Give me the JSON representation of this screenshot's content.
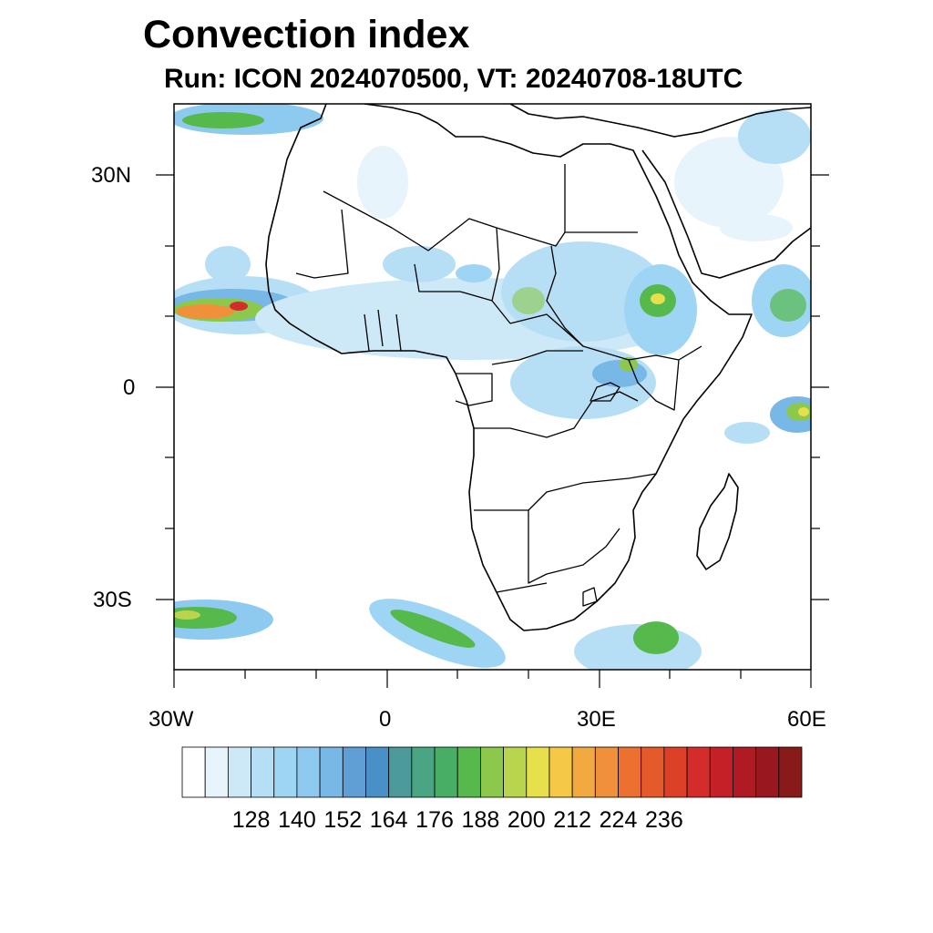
{
  "title": "Convection index",
  "subtitle": "Run: ICON 2024070500,  VT: 20240708-18UTC",
  "axes": {
    "x_ticks": [
      "30W",
      "0",
      "30E",
      "60E"
    ],
    "y_ticks": [
      "30N",
      "0",
      "30S"
    ],
    "x_range_deg": [
      -30,
      60
    ],
    "y_range_deg": [
      -40,
      40
    ]
  },
  "colorbar": {
    "labels": [
      "128",
      "140",
      "152",
      "164",
      "176",
      "188",
      "200",
      "212",
      "224",
      "236"
    ],
    "colors": [
      "#ffffff",
      "#e8f4fc",
      "#cde9f8",
      "#b6dff6",
      "#9fd5f4",
      "#8ecaf0",
      "#78b8e6",
      "#5f9fd5",
      "#4a90c8",
      "#4c9a9a",
      "#4aa583",
      "#48ad65",
      "#56b94c",
      "#8cc84c",
      "#b9d54d",
      "#e6e04d",
      "#f5c848",
      "#f2a93f",
      "#f1903a",
      "#ec7130",
      "#e55a2a",
      "#dc4027",
      "#d42b2b",
      "#c51f27",
      "#b01a22",
      "#991820",
      "#881a1a"
    ]
  },
  "regions": [
    {
      "name": "Northeast Atlantic band",
      "intensity": "green"
    },
    {
      "name": "West Africa / Cape Verde",
      "intensity": "orange-red"
    },
    {
      "name": "Sahel",
      "intensity": "light-blue"
    },
    {
      "name": "Ethiopian Highlands",
      "intensity": "green"
    },
    {
      "name": "Indian Ocean east edge",
      "intensity": "yellow"
    },
    {
      "name": "South Atlantic frontal band",
      "intensity": "green"
    },
    {
      "name": "Southern Indian Ocean",
      "intensity": "green"
    }
  ]
}
